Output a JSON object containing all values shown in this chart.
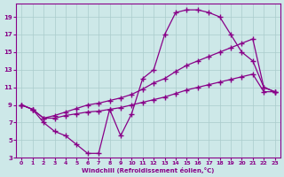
{
  "xlabel": "Windchill (Refroidissement éolien,°C)",
  "bg_color": "#cde8e8",
  "grid_color": "#aacccc",
  "line_color": "#880088",
  "xlim": [
    -0.5,
    23.5
  ],
  "ylim": [
    3,
    20.5
  ],
  "xticks": [
    0,
    1,
    2,
    3,
    4,
    5,
    6,
    7,
    8,
    9,
    10,
    11,
    12,
    13,
    14,
    15,
    16,
    17,
    18,
    19,
    20,
    21,
    22,
    23
  ],
  "yticks": [
    3,
    5,
    7,
    9,
    11,
    13,
    15,
    17,
    19
  ],
  "curve1_x": [
    0,
    1,
    2,
    3,
    4,
    5,
    6,
    7,
    8,
    9,
    10,
    11,
    12,
    13,
    14,
    15,
    16,
    17,
    18,
    19,
    20,
    21,
    22,
    23
  ],
  "curve1_y": [
    9,
    8.5,
    7,
    6,
    5.5,
    4.5,
    3.5,
    3.5,
    8.5,
    5.5,
    8,
    12,
    13,
    17,
    19.5,
    19.8,
    19.8,
    19.5,
    19,
    17,
    15,
    14,
    11,
    10.5
  ],
  "curve2_x": [
    0,
    1,
    2,
    3,
    4,
    5,
    6,
    7,
    8,
    9,
    10,
    11,
    12,
    13,
    14,
    15,
    16,
    17,
    18,
    19,
    20,
    21,
    22,
    23
  ],
  "curve2_y": [
    9,
    8.5,
    7.5,
    7.8,
    8.2,
    8.6,
    9.0,
    9.2,
    9.5,
    9.8,
    10.2,
    10.8,
    11.5,
    12.0,
    12.8,
    13.5,
    14.0,
    14.5,
    15.0,
    15.5,
    16.0,
    16.5,
    11.0,
    10.5
  ],
  "curve3_x": [
    0,
    1,
    2,
    3,
    4,
    5,
    6,
    7,
    8,
    9,
    10,
    11,
    12,
    13,
    14,
    15,
    16,
    17,
    18,
    19,
    20,
    21,
    22,
    23
  ],
  "curve3_y": [
    9,
    8.5,
    7.5,
    7.5,
    7.8,
    8.0,
    8.2,
    8.3,
    8.5,
    8.7,
    9.0,
    9.3,
    9.6,
    9.9,
    10.3,
    10.7,
    11.0,
    11.3,
    11.6,
    11.9,
    12.2,
    12.5,
    10.5,
    10.5
  ]
}
